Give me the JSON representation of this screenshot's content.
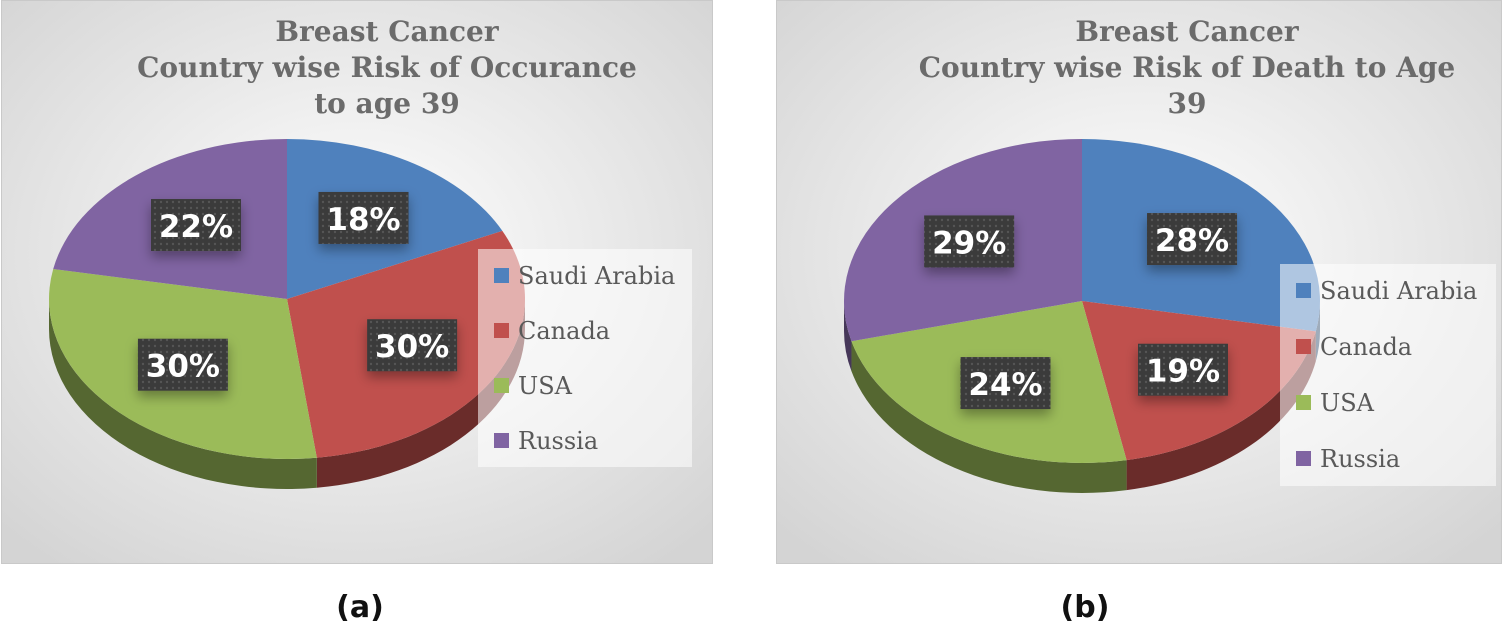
{
  "chart_data": [
    {
      "type": "pie",
      "title_lines": [
        "Breast Cancer",
        "Country wise Risk of  Occurance",
        "to age 39"
      ],
      "categories": [
        "Saudi Arabia",
        "Canada",
        "USA",
        "Russia"
      ],
      "values": [
        18,
        30,
        30,
        22
      ],
      "value_labels": [
        "18%",
        "30%",
        "30%",
        "22%"
      ],
      "legend": [
        "Saudi Arabia",
        "Canada",
        "USA",
        "Russia"
      ],
      "legend_position": "right",
      "style": "3d"
    },
    {
      "type": "pie",
      "title_lines": [
        "Breast Cancer",
        "Country wise Risk of Death to Age",
        "39"
      ],
      "categories": [
        "Saudi Arabia",
        "Canada",
        "USA",
        "Russia"
      ],
      "values": [
        28,
        19,
        24,
        29
      ],
      "value_labels": [
        "28%",
        "19%",
        "24%",
        "29%"
      ],
      "legend": [
        "Saudi Arabia",
        "Canada",
        "USA",
        "Russia"
      ],
      "legend_position": "right",
      "style": "3d"
    }
  ],
  "colors": {
    "Saudi Arabia": "#4f81bd",
    "Canada": "#c0504d",
    "USA": "#9bbb59",
    "Russia": "#8064a2"
  },
  "captions": [
    "(a)",
    "(b)"
  ]
}
